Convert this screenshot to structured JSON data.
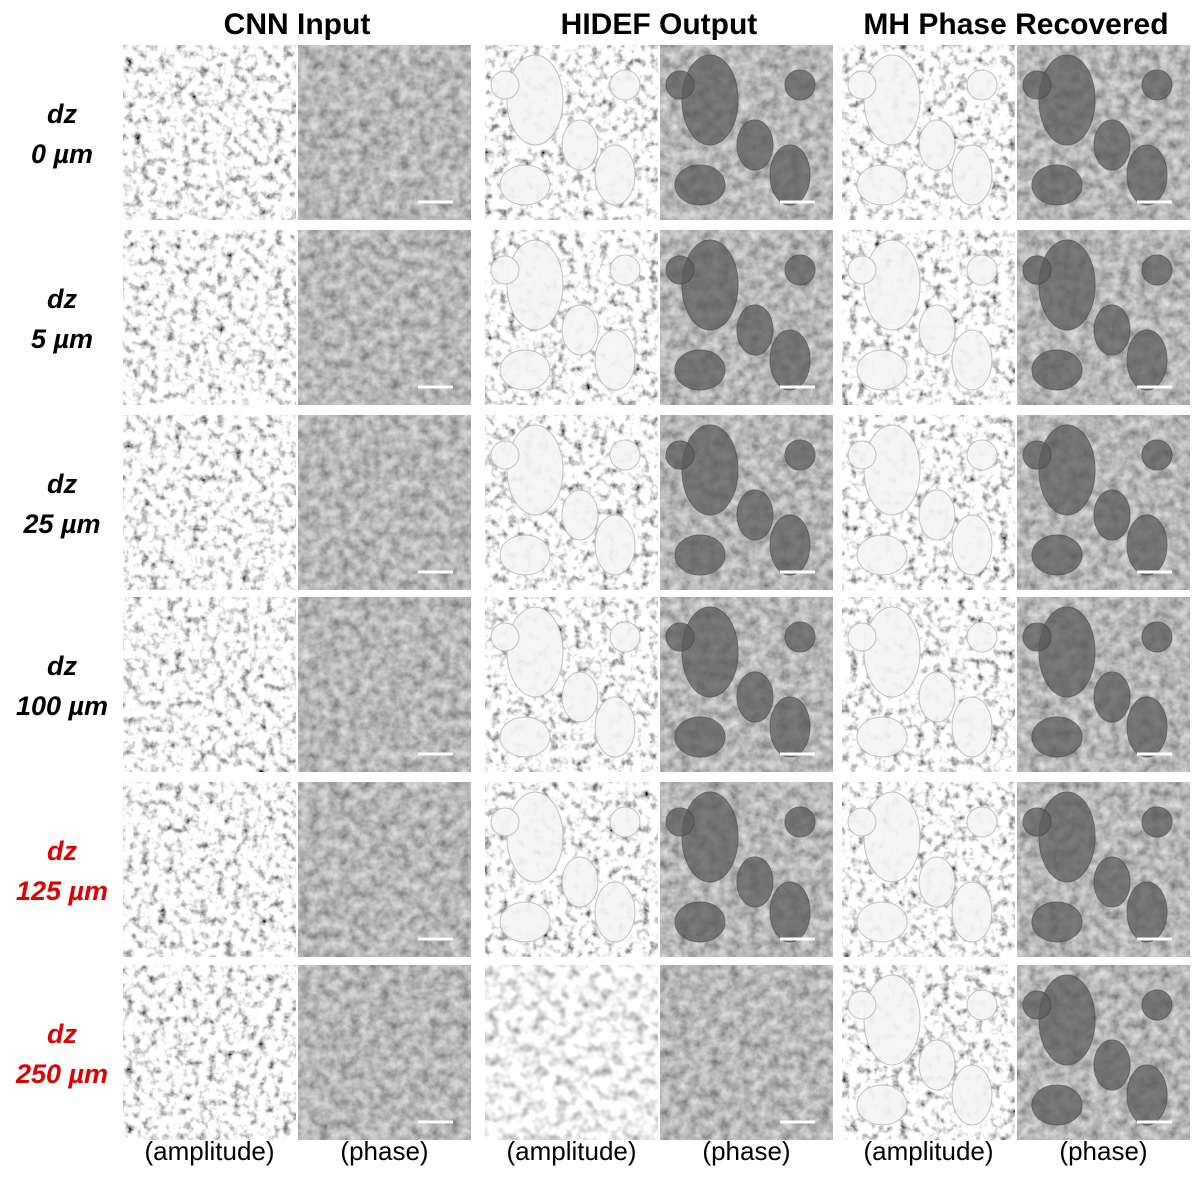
{
  "columns": [
    "CNN Input",
    "HIDEF Output",
    "MH Phase Recovered"
  ],
  "rows": [
    {
      "label": "dz",
      "depth": "0 µm",
      "color": "#000000"
    },
    {
      "label": "dz",
      "depth": "5 µm",
      "color": "#000000"
    },
    {
      "label": "dz",
      "depth": "25 µm",
      "color": "#000000"
    },
    {
      "label": "dz",
      "depth": "100 µm",
      "color": "#000000"
    },
    {
      "label": "dz",
      "depth": "125 µm",
      "color": "#e00000"
    },
    {
      "label": "dz",
      "depth": "250 µm",
      "color": "#e00000"
    }
  ],
  "subcolumns": [
    "(amplitude)",
    "(phase)",
    "(amplitude)",
    "(phase)",
    "(amplitude)",
    "(phase)"
  ]
}
